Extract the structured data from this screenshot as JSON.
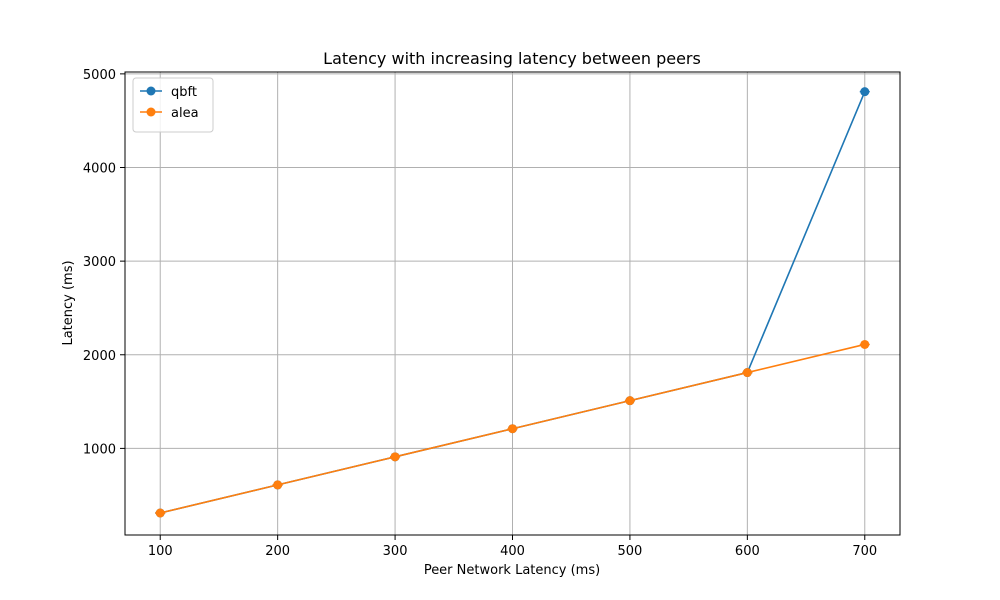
{
  "chart_data": {
    "type": "line",
    "title": "Latency with increasing latency between peers",
    "xlabel": "Peer Network Latency (ms)",
    "ylabel": "Latency (ms)",
    "x": [
      100,
      200,
      300,
      400,
      500,
      600,
      700
    ],
    "xlim": [
      70,
      730
    ],
    "ylim": [
      75,
      5020
    ],
    "x_ticks": [
      "100",
      "200",
      "300",
      "400",
      "500",
      "600",
      "700"
    ],
    "y_ticks": [
      "1000",
      "2000",
      "3000",
      "4000",
      "5000"
    ],
    "grid": true,
    "legend_position": "top-left",
    "series": [
      {
        "name": "qbft",
        "color": "#1f77b4",
        "marker": "circle",
        "error_bars": true,
        "values": [
          310,
          610,
          910,
          1210,
          1510,
          1810,
          4810
        ]
      },
      {
        "name": "alea",
        "color": "#ff7f0e",
        "marker": "circle",
        "error_bars": true,
        "values": [
          310,
          610,
          910,
          1210,
          1510,
          1810,
          2110
        ]
      }
    ]
  }
}
